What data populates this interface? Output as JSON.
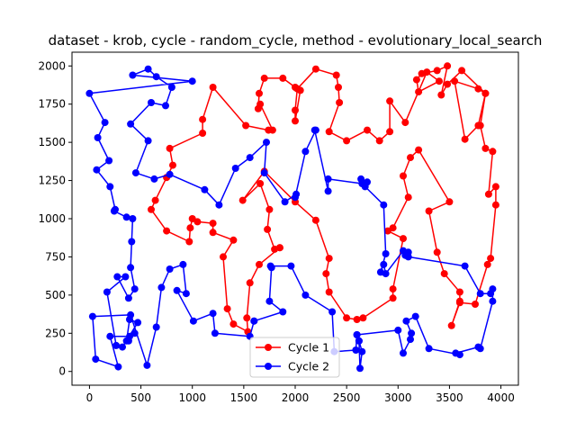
{
  "chart_data": {
    "type": "line",
    "title": "dataset - krob, cycle - random_cycle, method - evolutionary_local_search",
    "xlabel": "",
    "ylabel": "",
    "xlim": [
      -170,
      4170
    ],
    "ylim": [
      -90,
      2090
    ],
    "xticks": [
      0,
      500,
      1000,
      1500,
      2000,
      2500,
      3000,
      3500,
      4000
    ],
    "yticks": [
      0,
      250,
      500,
      750,
      1000,
      1250,
      1500,
      1750,
      2000
    ],
    "grid": false,
    "legend": {
      "position": "bottom-center"
    },
    "series": [
      {
        "name": "Cycle 1",
        "color": "#ff0000",
        "points": [
          [
            1850,
            810
          ],
          [
            1800,
            800
          ],
          [
            1730,
            930
          ],
          [
            1750,
            1060
          ],
          [
            1660,
            1230
          ],
          [
            1490,
            1120
          ],
          [
            1700,
            1310
          ],
          [
            2000,
            1110
          ],
          [
            2200,
            990
          ],
          [
            2330,
            740
          ],
          [
            2300,
            640
          ],
          [
            2330,
            520
          ],
          [
            2500,
            350
          ],
          [
            2600,
            340
          ],
          [
            2660,
            350
          ],
          [
            2950,
            480
          ],
          [
            2950,
            540
          ],
          [
            3050,
            870
          ],
          [
            2900,
            920
          ],
          [
            2950,
            940
          ],
          [
            3100,
            1140
          ],
          [
            3050,
            1280
          ],
          [
            3120,
            1400
          ],
          [
            3200,
            1450
          ],
          [
            3500,
            1110
          ],
          [
            3300,
            1050
          ],
          [
            3380,
            780
          ],
          [
            3450,
            640
          ],
          [
            3600,
            520
          ],
          [
            3600,
            460
          ],
          [
            3520,
            300
          ],
          [
            3600,
            450
          ],
          [
            3750,
            440
          ],
          [
            3870,
            700
          ],
          [
            3900,
            740
          ],
          [
            3950,
            1090
          ],
          [
            3950,
            1210
          ],
          [
            3880,
            1160
          ],
          [
            3920,
            1440
          ],
          [
            3850,
            1460
          ],
          [
            3800,
            1610
          ],
          [
            3850,
            1820
          ],
          [
            3780,
            1850
          ],
          [
            3550,
            1900
          ],
          [
            3650,
            1520
          ],
          [
            3780,
            1610
          ],
          [
            3850,
            1820
          ],
          [
            3620,
            1970
          ],
          [
            3480,
            1880
          ],
          [
            3420,
            1810
          ],
          [
            3480,
            2000
          ],
          [
            3380,
            1970
          ],
          [
            3230,
            1950
          ],
          [
            3180,
            1910
          ],
          [
            3200,
            1830
          ],
          [
            3400,
            1900
          ],
          [
            3280,
            1960
          ],
          [
            3070,
            1630
          ],
          [
            2920,
            1770
          ],
          [
            2920,
            1570
          ],
          [
            2820,
            1510
          ],
          [
            2700,
            1580
          ],
          [
            2500,
            1510
          ],
          [
            2330,
            1570
          ],
          [
            2430,
            1760
          ],
          [
            2420,
            1860
          ],
          [
            2400,
            1940
          ],
          [
            2200,
            1980
          ],
          [
            2020,
            1850
          ],
          [
            2000,
            1710
          ],
          [
            2000,
            1640
          ],
          [
            2050,
            1840
          ],
          [
            2000,
            1860
          ],
          [
            1880,
            1920
          ],
          [
            1700,
            1920
          ],
          [
            1650,
            1820
          ],
          [
            1640,
            1720
          ],
          [
            1660,
            1750
          ],
          [
            1780,
            1580
          ],
          [
            1740,
            1580
          ],
          [
            1520,
            1610
          ],
          [
            1200,
            1860
          ],
          [
            1100,
            1650
          ],
          [
            1100,
            1560
          ],
          [
            780,
            1460
          ],
          [
            810,
            1350
          ],
          [
            750,
            1270
          ],
          [
            640,
            1120
          ],
          [
            600,
            1060
          ],
          [
            750,
            920
          ],
          [
            970,
            850
          ],
          [
            980,
            940
          ],
          [
            1000,
            1000
          ],
          [
            1050,
            980
          ],
          [
            1200,
            970
          ],
          [
            1200,
            910
          ],
          [
            1400,
            860
          ],
          [
            1300,
            750
          ],
          [
            1340,
            410
          ],
          [
            1400,
            310
          ],
          [
            1540,
            260
          ],
          [
            1530,
            350
          ],
          [
            1560,
            580
          ],
          [
            1650,
            700
          ],
          [
            1850,
            810
          ]
        ]
      },
      {
        "name": "Cycle 2",
        "color": "#0000ff",
        "points": [
          [
            1600,
            330
          ],
          [
            1880,
            390
          ],
          [
            1750,
            460
          ],
          [
            1770,
            680
          ],
          [
            1760,
            690
          ],
          [
            1960,
            690
          ],
          [
            2100,
            500
          ],
          [
            2360,
            390
          ],
          [
            2380,
            130
          ],
          [
            2590,
            140
          ],
          [
            2600,
            240
          ],
          [
            2620,
            200
          ],
          [
            2630,
            20
          ],
          [
            2650,
            130
          ],
          [
            2620,
            200
          ],
          [
            2600,
            240
          ],
          [
            3000,
            270
          ],
          [
            3050,
            120
          ],
          [
            3120,
            210
          ],
          [
            3130,
            250
          ],
          [
            3080,
            330
          ],
          [
            3170,
            360
          ],
          [
            3300,
            150
          ],
          [
            3600,
            110
          ],
          [
            3560,
            120
          ],
          [
            3780,
            160
          ],
          [
            3800,
            150
          ],
          [
            3920,
            460
          ],
          [
            3920,
            540
          ],
          [
            3900,
            510
          ],
          [
            3800,
            510
          ],
          [
            3650,
            690
          ],
          [
            3100,
            750
          ],
          [
            3100,
            780
          ],
          [
            3070,
            760
          ],
          [
            3050,
            790
          ],
          [
            2880,
            640
          ],
          [
            2860,
            700
          ],
          [
            2830,
            650
          ],
          [
            2880,
            770
          ],
          [
            2860,
            1090
          ],
          [
            2680,
            1210
          ],
          [
            2700,
            1240
          ],
          [
            2640,
            1260
          ],
          [
            2650,
            1230
          ],
          [
            2320,
            1260
          ],
          [
            2320,
            1180
          ],
          [
            2190,
            1580
          ],
          [
            2200,
            1580
          ],
          [
            2100,
            1440
          ],
          [
            2000,
            1140
          ],
          [
            2010,
            1160
          ],
          [
            1900,
            1110
          ],
          [
            1700,
            1300
          ],
          [
            1720,
            1500
          ],
          [
            1560,
            1400
          ],
          [
            1420,
            1330
          ],
          [
            1260,
            1090
          ],
          [
            1120,
            1190
          ],
          [
            780,
            1290
          ],
          [
            630,
            1260
          ],
          [
            450,
            1300
          ],
          [
            570,
            1510
          ],
          [
            400,
            1620
          ],
          [
            600,
            1760
          ],
          [
            740,
            1740
          ],
          [
            800,
            1860
          ],
          [
            650,
            1930
          ],
          [
            570,
            1980
          ],
          [
            420,
            1940
          ],
          [
            1000,
            1900
          ],
          [
            0,
            1820
          ],
          [
            150,
            1630
          ],
          [
            80,
            1530
          ],
          [
            190,
            1380
          ],
          [
            70,
            1320
          ],
          [
            200,
            1210
          ],
          [
            250,
            1060
          ],
          [
            240,
            1050
          ],
          [
            360,
            1010
          ],
          [
            420,
            1000
          ],
          [
            410,
            850
          ],
          [
            400,
            680
          ],
          [
            440,
            540
          ],
          [
            380,
            480
          ],
          [
            270,
            620
          ],
          [
            350,
            620
          ],
          [
            170,
            520
          ],
          [
            260,
            170
          ],
          [
            320,
            160
          ],
          [
            470,
            320
          ],
          [
            390,
            340
          ],
          [
            360,
            200
          ],
          [
            380,
            200
          ],
          [
            440,
            250
          ],
          [
            390,
            230
          ],
          [
            200,
            230
          ],
          [
            280,
            30
          ],
          [
            60,
            80
          ],
          [
            30,
            360
          ],
          [
            400,
            370
          ],
          [
            560,
            40
          ],
          [
            650,
            290
          ],
          [
            700,
            550
          ],
          [
            780,
            670
          ],
          [
            910,
            700
          ],
          [
            940,
            510
          ],
          [
            850,
            530
          ],
          [
            1010,
            330
          ],
          [
            1200,
            380
          ],
          [
            1220,
            250
          ],
          [
            1560,
            230
          ],
          [
            1600,
            330
          ]
        ]
      }
    ]
  }
}
